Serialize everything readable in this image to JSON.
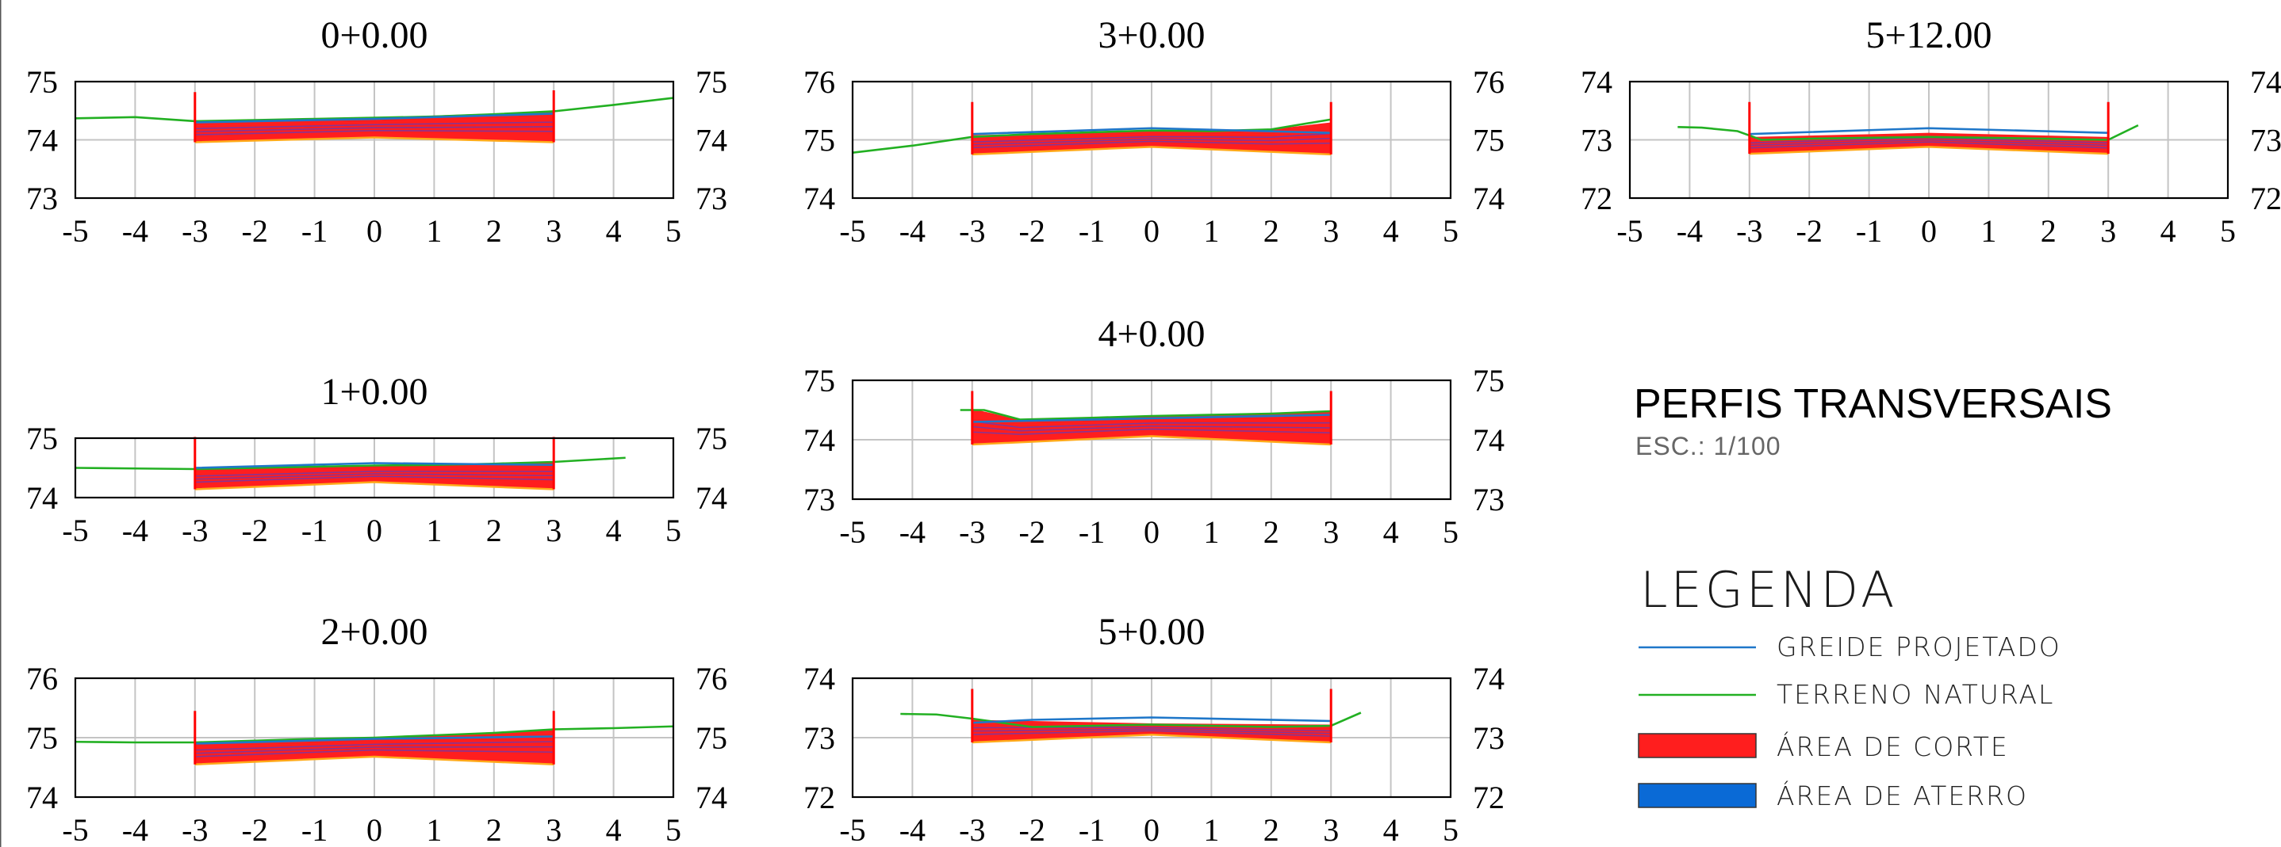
{
  "sheet": {
    "title": "PERFIS TRANSVERSAIS",
    "scale": "ESC.:  1/100"
  },
  "legend": {
    "title": "LEGENDA",
    "items": [
      {
        "label": "GREIDE  PROJETADO",
        "symbol": "line",
        "color": "#1f77c9"
      },
      {
        "label": "TERRENO  NATURAL",
        "symbol": "line",
        "color": "#22b022"
      },
      {
        "label": "ÁREA  DE  CORTE",
        "symbol": "fill",
        "color": "#ff1e1e"
      },
      {
        "label": "ÁREA  DE  ATERRO",
        "symbol": "fill",
        "color": "#0a6ad6"
      }
    ]
  },
  "colors": {
    "greide": "#1f77c9",
    "terreno": "#22b022",
    "corte": "#ff1e1e",
    "aterro": "#0a6ad6",
    "corte_edge": "#ffaa1a",
    "marker": "#ff0000"
  },
  "chart_data": [
    {
      "type": "line",
      "title": "0+0.00",
      "xticks": [
        "-5",
        "-4",
        "-3",
        "-2",
        "-1",
        "0",
        "1",
        "2",
        "3",
        "4",
        "5"
      ],
      "xlim": [
        -5,
        5
      ],
      "ylim": [
        73,
        75
      ],
      "yticks": [
        "73",
        "74",
        "75"
      ],
      "series": [
        {
          "role": "terreno",
          "x": [
            -5,
            -4,
            -3,
            -2,
            -1,
            0,
            1,
            2,
            3,
            4,
            5
          ],
          "y": [
            74.37,
            74.39,
            74.32,
            74.34,
            74.36,
            74.38,
            74.4,
            74.44,
            74.49,
            74.6,
            74.72
          ]
        },
        {
          "role": "greide",
          "x": [
            -3,
            0,
            3
          ],
          "y": [
            74.3,
            74.36,
            74.45
          ]
        }
      ],
      "corte": {
        "top": [
          [
            -3,
            74.32
          ],
          [
            0,
            74.38
          ],
          [
            3,
            74.49
          ]
        ],
        "bottom": [
          [
            -3,
            73.96
          ],
          [
            0,
            74.04
          ],
          [
            3,
            73.96
          ]
        ]
      },
      "markers": [
        {
          "x": -3,
          "y1": 73.96,
          "y2": 74.82
        },
        {
          "x": 3,
          "y1": 73.96,
          "y2": 74.85
        }
      ]
    },
    {
      "type": "line",
      "title": "1+0.00",
      "xticks": [
        "-5",
        "-4",
        "-3",
        "-2",
        "-1",
        "0",
        "1",
        "2",
        "3",
        "4",
        "5"
      ],
      "xlim": [
        -5,
        5
      ],
      "ylim": [
        74,
        75
      ],
      "yticks": [
        "74",
        "75"
      ],
      "series": [
        {
          "role": "terreno",
          "x": [
            -5,
            -4,
            -3,
            -2,
            -1,
            0,
            1,
            2,
            3,
            4.2
          ],
          "y": [
            74.5,
            74.49,
            74.48,
            74.5,
            74.52,
            74.54,
            74.55,
            74.57,
            74.6,
            74.67
          ]
        },
        {
          "role": "greide",
          "x": [
            -3,
            0,
            3
          ],
          "y": [
            74.5,
            74.58,
            74.55
          ]
        }
      ],
      "corte": {
        "top": [
          [
            -3,
            74.48
          ],
          [
            0,
            74.54
          ],
          [
            3,
            74.6
          ]
        ],
        "bottom": [
          [
            -3,
            74.14
          ],
          [
            0,
            74.26
          ],
          [
            3,
            74.14
          ]
        ]
      },
      "markers": [
        {
          "x": -3,
          "y1": 74.14,
          "y2": 75.02
        },
        {
          "x": 3,
          "y1": 74.14,
          "y2": 75.02
        }
      ]
    },
    {
      "type": "line",
      "title": "2+0.00",
      "xticks": [
        "-5",
        "-4",
        "-3",
        "-2",
        "-1",
        "0",
        "1",
        "2",
        "3",
        "4",
        "5"
      ],
      "xlim": [
        -5,
        5
      ],
      "ylim": [
        74,
        76
      ],
      "yticks": [
        "74",
        "75",
        "76"
      ],
      "series": [
        {
          "role": "terreno",
          "x": [
            -5,
            -4,
            -3,
            -2,
            -1,
            0,
            1,
            2,
            3,
            4,
            5
          ],
          "y": [
            74.93,
            74.92,
            74.92,
            74.95,
            74.98,
            75.0,
            75.04,
            75.08,
            75.14,
            75.16,
            75.19
          ]
        },
        {
          "role": "greide",
          "x": [
            -3,
            0,
            3
          ],
          "y": [
            74.9,
            74.98,
            75.02
          ]
        }
      ],
      "corte": {
        "top": [
          [
            -3,
            74.92
          ],
          [
            0,
            75.0
          ],
          [
            3,
            75.14
          ]
        ],
        "bottom": [
          [
            -3,
            74.55
          ],
          [
            0,
            74.68
          ],
          [
            3,
            74.55
          ]
        ]
      },
      "markers": [
        {
          "x": -3,
          "y1": 74.55,
          "y2": 75.45
        },
        {
          "x": 3,
          "y1": 74.55,
          "y2": 75.45
        }
      ]
    },
    {
      "type": "line",
      "title": "3+0.00",
      "xticks": [
        "-5",
        "-4",
        "-3",
        "-2",
        "-1",
        "0",
        "1",
        "2",
        "3",
        "4",
        "5"
      ],
      "xlim": [
        -5,
        5
      ],
      "ylim": [
        74,
        76
      ],
      "yticks": [
        "74",
        "75",
        "76"
      ],
      "series": [
        {
          "role": "terreno",
          "x": [
            -5,
            -4,
            -3,
            -2,
            -1,
            0,
            1,
            2,
            3
          ],
          "y": [
            74.78,
            74.9,
            75.05,
            75.1,
            75.13,
            75.16,
            75.15,
            75.18,
            75.35
          ]
        },
        {
          "role": "greide",
          "x": [
            -3,
            0,
            3
          ],
          "y": [
            75.1,
            75.2,
            75.12
          ]
        }
      ],
      "corte": {
        "top": [
          [
            -3,
            75.08
          ],
          [
            0,
            75.15
          ],
          [
            2,
            75.18
          ],
          [
            3,
            75.3
          ]
        ],
        "bottom": [
          [
            -3,
            74.75
          ],
          [
            0,
            74.88
          ],
          [
            3,
            74.75
          ]
        ]
      },
      "markers": [
        {
          "x": -3,
          "y1": 74.75,
          "y2": 75.65
        },
        {
          "x": 3,
          "y1": 74.75,
          "y2": 75.65
        }
      ]
    },
    {
      "type": "line",
      "title": "4+0.00",
      "xticks": [
        "-5",
        "-4",
        "-3",
        "-2",
        "-1",
        "0",
        "1",
        "2",
        "3",
        "4",
        "5"
      ],
      "xlim": [
        -5,
        5
      ],
      "ylim": [
        73,
        75
      ],
      "yticks": [
        "73",
        "74",
        "75"
      ],
      "series": [
        {
          "role": "terreno",
          "x": [
            -3.2,
            -2.8,
            -2.2,
            -1,
            0,
            1,
            2,
            3
          ],
          "y": [
            74.5,
            74.5,
            74.34,
            74.37,
            74.4,
            74.42,
            74.44,
            74.48
          ]
        },
        {
          "role": "greide",
          "x": [
            -3,
            0,
            3
          ],
          "y": [
            74.3,
            74.36,
            74.42
          ]
        }
      ],
      "corte": {
        "top": [
          [
            -3,
            74.52
          ],
          [
            -2.2,
            74.34
          ],
          [
            0,
            74.4
          ],
          [
            3,
            74.48
          ]
        ],
        "bottom": [
          [
            -3,
            73.92
          ],
          [
            0,
            74.06
          ],
          [
            3,
            73.92
          ]
        ]
      },
      "markers": [
        {
          "x": -3,
          "y1": 73.92,
          "y2": 74.82
        },
        {
          "x": 3,
          "y1": 73.92,
          "y2": 74.82
        }
      ]
    },
    {
      "type": "line",
      "title": "5+0.00",
      "xticks": [
        "-5",
        "-4",
        "-3",
        "-2",
        "-1",
        "0",
        "1",
        "2",
        "3",
        "4",
        "5"
      ],
      "xlim": [
        -5,
        5
      ],
      "ylim": [
        72,
        74
      ],
      "yticks": [
        "72",
        "73",
        "74"
      ],
      "series": [
        {
          "role": "terreno",
          "x": [
            -4.2,
            -3.6,
            -3,
            -2,
            -1,
            0,
            1,
            2,
            3,
            3.5
          ],
          "y": [
            73.4,
            73.39,
            73.32,
            73.18,
            73.2,
            73.22,
            73.2,
            73.18,
            73.2,
            73.42
          ]
        },
        {
          "role": "greide",
          "x": [
            -3,
            -2,
            0,
            3
          ],
          "y": [
            73.25,
            73.3,
            73.34,
            73.28
          ]
        }
      ],
      "corte": {
        "top": [
          [
            -3,
            73.3
          ],
          [
            0,
            73.24
          ],
          [
            3,
            73.22
          ]
        ],
        "bottom": [
          [
            -3,
            72.92
          ],
          [
            0,
            73.05
          ],
          [
            3,
            72.92
          ]
        ]
      },
      "markers": [
        {
          "x": -3,
          "y1": 72.92,
          "y2": 73.82
        },
        {
          "x": 3,
          "y1": 72.92,
          "y2": 73.82
        }
      ]
    },
    {
      "type": "line",
      "title": "5+12.00",
      "xticks": [
        "-5",
        "-4",
        "-3",
        "-2",
        "-1",
        "0",
        "1",
        "2",
        "3",
        "4",
        "5"
      ],
      "xlim": [
        -5,
        5
      ],
      "ylim": [
        72,
        74
      ],
      "yticks": [
        "72",
        "73",
        "74"
      ],
      "series": [
        {
          "role": "terreno",
          "x": [
            -4.2,
            -3.8,
            -3.2,
            -2.8,
            -2,
            0,
            2,
            3,
            3.5
          ],
          "y": [
            73.22,
            73.21,
            73.15,
            73.0,
            73.02,
            73.05,
            73.02,
            73.0,
            73.25
          ]
        },
        {
          "role": "greide",
          "x": [
            -3,
            0,
            3
          ],
          "y": [
            73.1,
            73.2,
            73.12
          ]
        }
      ],
      "corte": {
        "top": [
          [
            -3,
            73.05
          ],
          [
            0,
            73.12
          ],
          [
            3,
            73.05
          ]
        ],
        "bottom": [
          [
            -3,
            72.76
          ],
          [
            0,
            72.88
          ],
          [
            3,
            72.76
          ]
        ]
      },
      "markers": [
        {
          "x": -3,
          "y1": 72.76,
          "y2": 73.65
        },
        {
          "x": 3,
          "y1": 72.76,
          "y2": 73.65
        }
      ]
    }
  ]
}
